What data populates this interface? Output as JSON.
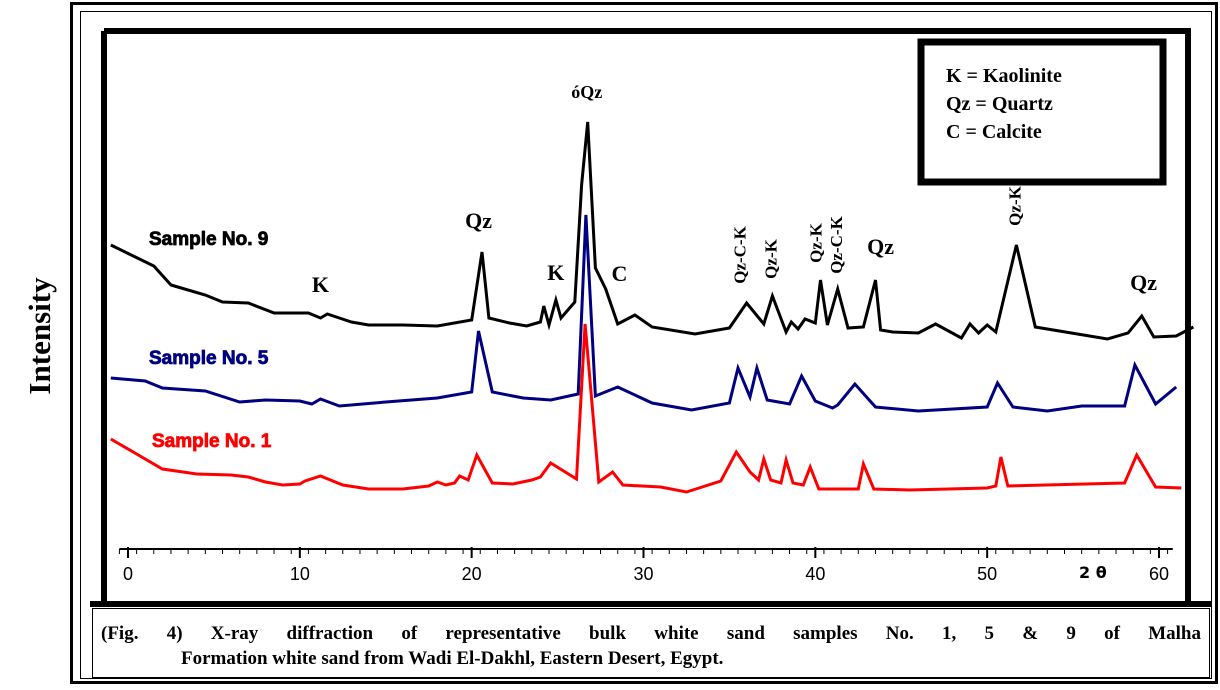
{
  "ylabel": "Intensity",
  "caption": {
    "line1": "(Fig. 4) X-ray diffraction of representative bulk white sand samples No. 1, 5 & 9 of Malha",
    "line2": "Formation white sand from Wadi El-Dakhl, Eastern Desert, Egypt."
  },
  "legend": [
    "K = Kaolinite",
    "Qz = Quartz",
    "C = Calcite"
  ],
  "chart_data": {
    "type": "line",
    "xlabel": "2 θ",
    "ylabel": "Intensity",
    "xlim": [
      -1,
      61
    ],
    "xticks": [
      0,
      10,
      20,
      30,
      40,
      50,
      60
    ],
    "grid": false,
    "legend_position": "top-right",
    "series": [
      {
        "name": "Sample No. 9",
        "color": "#000000",
        "points": [
          [
            -1,
            245
          ],
          [
            1.5,
            266
          ],
          [
            2.5,
            285
          ],
          [
            4.5,
            295
          ],
          [
            5.5,
            302
          ],
          [
            7,
            303
          ],
          [
            8.5,
            313
          ],
          [
            10.5,
            313
          ],
          [
            11.2,
            318
          ],
          [
            11.6,
            314
          ],
          [
            12.3,
            318
          ],
          [
            13,
            322
          ],
          [
            14,
            325
          ],
          [
            16,
            325
          ],
          [
            18,
            326
          ],
          [
            20,
            320
          ],
          [
            20.6,
            252
          ],
          [
            21,
            318
          ],
          [
            22.2,
            323
          ],
          [
            23.2,
            326
          ],
          [
            24,
            322
          ],
          [
            24.2,
            306
          ],
          [
            24.5,
            325
          ],
          [
            24.9,
            300
          ],
          [
            25.2,
            318
          ],
          [
            26,
            302
          ],
          [
            26.4,
            185
          ],
          [
            26.75,
            122
          ],
          [
            27.2,
            268
          ],
          [
            27.8,
            289
          ],
          [
            28.5,
            324
          ],
          [
            29.5,
            315
          ],
          [
            30.5,
            327
          ],
          [
            33,
            334
          ],
          [
            35,
            328
          ],
          [
            36,
            303
          ],
          [
            37,
            324
          ],
          [
            37.5,
            296
          ],
          [
            38.3,
            332
          ],
          [
            38.6,
            322
          ],
          [
            39,
            329
          ],
          [
            39.4,
            319
          ],
          [
            40,
            323
          ],
          [
            40.3,
            280
          ],
          [
            40.7,
            325
          ],
          [
            41.3,
            289
          ],
          [
            41.9,
            328
          ],
          [
            42.8,
            327
          ],
          [
            43.5,
            280
          ],
          [
            43.8,
            330
          ],
          [
            44.5,
            332
          ],
          [
            46,
            333
          ],
          [
            47,
            324
          ],
          [
            48.5,
            338
          ],
          [
            49,
            324
          ],
          [
            49.5,
            333
          ],
          [
            50,
            325
          ],
          [
            50.5,
            332
          ],
          [
            51.7,
            245
          ],
          [
            52.8,
            327
          ],
          [
            57,
            339
          ],
          [
            58.2,
            333
          ],
          [
            59,
            316
          ],
          [
            59.7,
            337
          ],
          [
            61,
            336
          ],
          [
            62,
            327
          ]
        ]
      },
      {
        "name": "Sample No. 5",
        "color": "#000080",
        "points": [
          [
            -1,
            378
          ],
          [
            1,
            381
          ],
          [
            2,
            388
          ],
          [
            4.5,
            391
          ],
          [
            6.5,
            402
          ],
          [
            8,
            400
          ],
          [
            10,
            401
          ],
          [
            10.7,
            404
          ],
          [
            11.2,
            399
          ],
          [
            12.3,
            406
          ],
          [
            15,
            402
          ],
          [
            18,
            398
          ],
          [
            20,
            392
          ],
          [
            20.4,
            331
          ],
          [
            21.2,
            392
          ],
          [
            23,
            398
          ],
          [
            24.6,
            400
          ],
          [
            26.2,
            394
          ],
          [
            26.65,
            215
          ],
          [
            27.2,
            396
          ],
          [
            28.5,
            387
          ],
          [
            30.5,
            403
          ],
          [
            32.8,
            410
          ],
          [
            35,
            403
          ],
          [
            35.5,
            368
          ],
          [
            36.2,
            397
          ],
          [
            36.6,
            368
          ],
          [
            37.2,
            400
          ],
          [
            38.5,
            404
          ],
          [
            39.2,
            376
          ],
          [
            40,
            401
          ],
          [
            41,
            408
          ],
          [
            41.3,
            405
          ],
          [
            42.3,
            384
          ],
          [
            43.5,
            407
          ],
          [
            46,
            411
          ],
          [
            50,
            407
          ],
          [
            50.6,
            383
          ],
          [
            51.5,
            407
          ],
          [
            53.5,
            411
          ],
          [
            55.5,
            406
          ],
          [
            58,
            406
          ],
          [
            58.6,
            365
          ],
          [
            59.8,
            404
          ],
          [
            61,
            387
          ]
        ]
      },
      {
        "name": "Sample No. 1",
        "color": "#ff0000",
        "points": [
          [
            -1,
            439
          ],
          [
            0.5,
            454
          ],
          [
            2,
            469
          ],
          [
            4,
            474
          ],
          [
            6,
            475
          ],
          [
            7,
            477
          ],
          [
            8,
            482
          ],
          [
            9,
            485
          ],
          [
            10,
            484
          ],
          [
            10.3,
            481
          ],
          [
            11.2,
            476
          ],
          [
            12.5,
            485
          ],
          [
            14,
            489
          ],
          [
            16,
            489
          ],
          [
            17.5,
            486
          ],
          [
            18,
            482
          ],
          [
            18.5,
            485
          ],
          [
            19,
            483
          ],
          [
            19.3,
            476
          ],
          [
            19.8,
            480
          ],
          [
            20.3,
            455
          ],
          [
            21.2,
            483
          ],
          [
            22.4,
            484
          ],
          [
            23.5,
            480
          ],
          [
            24,
            477
          ],
          [
            24.6,
            463
          ],
          [
            26.1,
            479
          ],
          [
            26.6,
            324
          ],
          [
            27.4,
            482
          ],
          [
            28.2,
            472
          ],
          [
            28.8,
            485
          ],
          [
            31,
            487
          ],
          [
            32.5,
            492
          ],
          [
            34.5,
            481
          ],
          [
            35.4,
            452
          ],
          [
            36.2,
            472
          ],
          [
            36.7,
            480
          ],
          [
            37,
            459
          ],
          [
            37.4,
            480
          ],
          [
            38,
            483
          ],
          [
            38.3,
            460
          ],
          [
            38.7,
            483
          ],
          [
            39.3,
            485
          ],
          [
            39.7,
            467
          ],
          [
            40.2,
            489
          ],
          [
            42.5,
            489
          ],
          [
            42.8,
            464
          ],
          [
            43.4,
            489
          ],
          [
            45.5,
            490
          ],
          [
            50,
            488
          ],
          [
            50.5,
            486
          ],
          [
            50.8,
            457
          ],
          [
            51.2,
            486
          ],
          [
            58,
            483
          ],
          [
            58.7,
            455
          ],
          [
            59.8,
            487
          ],
          [
            61.3,
            488
          ]
        ]
      }
    ],
    "peak_labels": [
      {
        "text": "K",
        "x": 11.2,
        "y": 292
      },
      {
        "text": "Qz",
        "x": 20.4,
        "y": 228
      },
      {
        "text": "K",
        "x": 24.9,
        "y": 280
      },
      {
        "text": "C",
        "x": 28.6,
        "y": 281
      },
      {
        "text": "óQz",
        "x": 26.7,
        "y": 98
      },
      {
        "text": "Qz",
        "x": 43.8,
        "y": 254
      },
      {
        "text": "Qz",
        "x": 59.1,
        "y": 290
      },
      {
        "text": "Qz-C-K",
        "x": 35.6,
        "y": 255,
        "rotate": true
      },
      {
        "text": "Qz-K",
        "x": 37.4,
        "y": 259,
        "rotate": true
      },
      {
        "text": "Qz-K",
        "x": 40,
        "y": 243,
        "rotate": true
      },
      {
        "text": "Qz-C-K",
        "x": 41.2,
        "y": 245,
        "rotate": true
      },
      {
        "text": "Qz-K",
        "x": 51.6,
        "y": 206,
        "rotate": true
      }
    ]
  }
}
